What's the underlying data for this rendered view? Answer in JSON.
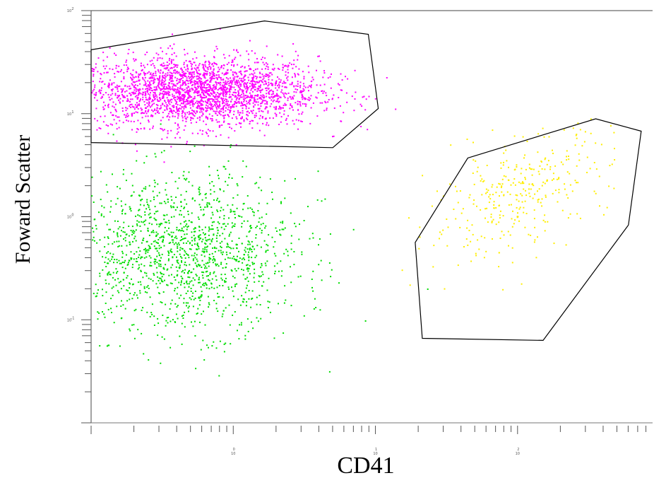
{
  "chart_data": {
    "type": "scatter",
    "title": "",
    "xlabel": "CD41",
    "ylabel": "Foward Scatter",
    "xscale": "log",
    "yscale": "log",
    "xlim": [
      -1,
      2.95
    ],
    "ylim": [
      -2,
      2
    ],
    "x_ticks": [
      {
        "value": 0,
        "label": "10"
      },
      {
        "value": 1,
        "label": "10"
      },
      {
        "value": 2,
        "label": "10"
      }
    ],
    "y_ticks": [
      {
        "value": 2,
        "label": "10"
      },
      {
        "value": 1,
        "label": "10"
      },
      {
        "value": 0,
        "label": "10"
      },
      {
        "value": -1,
        "label": "10"
      }
    ],
    "grid": false,
    "legend": "none",
    "series": [
      {
        "color": "#ff00ff",
        "center": [
          -0.25,
          1.22
        ],
        "spread": [
          0.42,
          0.17
        ],
        "count": 2600,
        "size": 2
      },
      {
        "color": "#00dd00",
        "center": [
          -0.35,
          -0.35
        ],
        "spread": [
          0.4,
          0.38
        ],
        "count": 1500,
        "size": 2
      },
      {
        "color": "#ffee00",
        "center": [
          2.0,
          0.22
        ],
        "spread": [
          0.32,
          0.26
        ],
        "count": 340,
        "size": 2
      }
    ],
    "gates": [
      {
        "color": "#000000",
        "vertices": [
          [
            -1,
            1.62
          ],
          [
            0.22,
            1.9
          ],
          [
            0.95,
            1.77
          ],
          [
            1.02,
            1.05
          ],
          [
            0.7,
            0.67
          ],
          [
            -1,
            0.72
          ]
        ]
      },
      {
        "color": "#000000",
        "vertices": [
          [
            1.65,
            0.57
          ],
          [
            2.55,
            0.95
          ],
          [
            2.87,
            0.83
          ],
          [
            2.78,
            -0.08
          ],
          [
            2.18,
            -1.2
          ],
          [
            1.33,
            -1.18
          ],
          [
            1.28,
            -0.25
          ]
        ]
      }
    ]
  }
}
